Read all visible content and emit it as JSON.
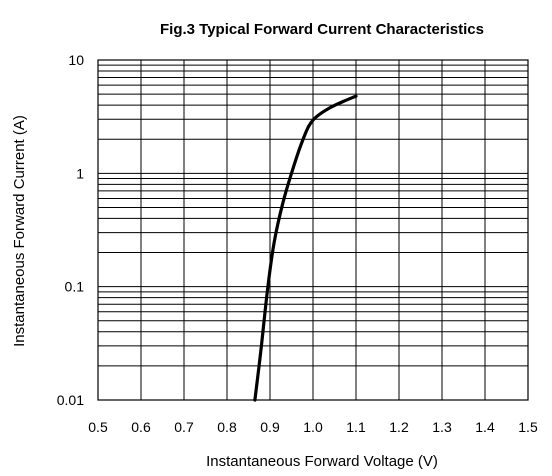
{
  "chart_data": {
    "type": "line",
    "title": "Fig.3 Typical Forward Current Characteristics",
    "xlabel": "Instantaneous Forward Voltage (V)",
    "ylabel": "Instantaneous Forward Current (A)",
    "xlim": [
      0.5,
      1.5
    ],
    "ylim": [
      0.01,
      10
    ],
    "yscale": "log",
    "grid": true,
    "x_ticks": [
      "0.5",
      "0.6",
      "0.7",
      "0.8",
      "0.9",
      "1.0",
      "1.1",
      "1.2",
      "1.3",
      "1.4",
      "1.5"
    ],
    "y_ticks": [
      "0.01",
      "0.1",
      "1",
      "10"
    ],
    "line_color": "#000000",
    "series": [
      {
        "x": [
          0.865,
          0.88,
          0.895,
          0.91,
          0.93,
          0.95,
          0.97,
          0.99,
          1.01,
          1.04,
          1.07,
          1.1
        ],
        "y": [
          0.01,
          0.03,
          0.1,
          0.25,
          0.55,
          1.0,
          1.7,
          2.6,
          3.2,
          3.8,
          4.3,
          4.8
        ]
      }
    ]
  }
}
